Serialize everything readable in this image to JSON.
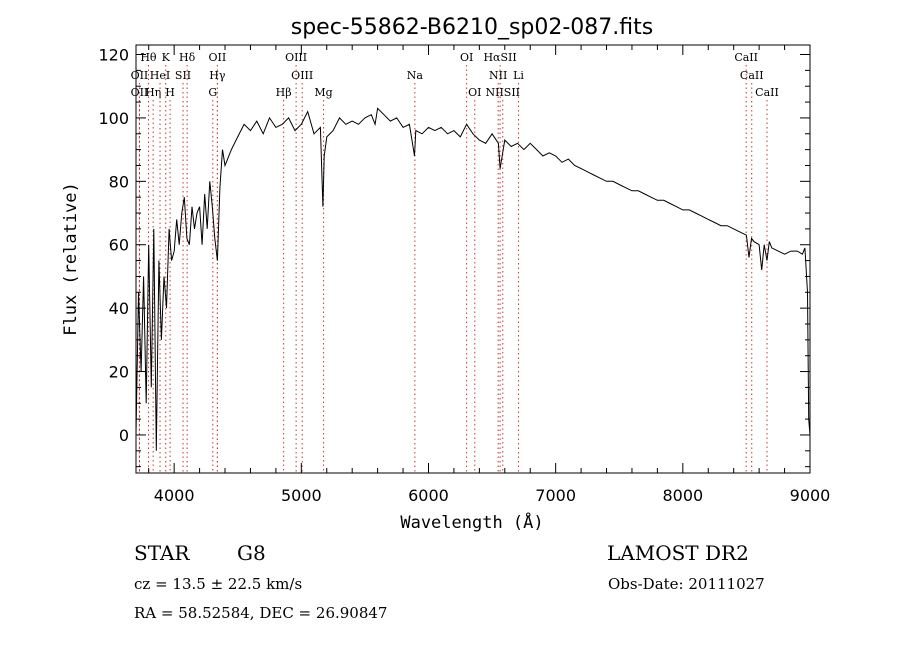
{
  "chart_data": {
    "type": "line",
    "title": "spec-55862-B6210_sp02-087.fits",
    "xlabel": "Wavelength (Å)",
    "ylabel": "Flux (relative)",
    "xlim": [
      3700,
      9000
    ],
    "ylim": [
      -12,
      123
    ],
    "x_ticks": [
      4000,
      5000,
      6000,
      7000,
      8000,
      9000
    ],
    "y_ticks": [
      0,
      20,
      40,
      60,
      80,
      100,
      120
    ],
    "grid": false,
    "series": [
      {
        "x": [
          3700,
          3720,
          3740,
          3760,
          3780,
          3800,
          3820,
          3840,
          3860,
          3880,
          3900,
          3920,
          3940,
          3960,
          3980,
          4000,
          4020,
          4040,
          4060,
          4080,
          4100,
          4120,
          4140,
          4160,
          4180,
          4200,
          4220,
          4240,
          4260,
          4280,
          4300,
          4320,
          4340,
          4360,
          4380,
          4400,
          4450,
          4500,
          4550,
          4600,
          4650,
          4700,
          4750,
          4800,
          4850,
          4900,
          4950,
          5000,
          5050,
          5100,
          5150,
          5170,
          5180,
          5200,
          5250,
          5300,
          5350,
          5400,
          5450,
          5500,
          5550,
          5580,
          5600,
          5650,
          5700,
          5750,
          5800,
          5850,
          5890,
          5900,
          5950,
          6000,
          6050,
          6100,
          6150,
          6200,
          6250,
          6300,
          6350,
          6400,
          6450,
          6500,
          6550,
          6563,
          6600,
          6650,
          6700,
          6750,
          6800,
          6850,
          6900,
          6950,
          7000,
          7050,
          7100,
          7150,
          7200,
          7250,
          7300,
          7350,
          7400,
          7450,
          7500,
          7550,
          7600,
          7650,
          7700,
          7750,
          7800,
          7850,
          7900,
          7950,
          8000,
          8050,
          8100,
          8150,
          8200,
          8250,
          8300,
          8350,
          8400,
          8450,
          8500,
          8520,
          8540,
          8560,
          8600,
          8620,
          8640,
          8662,
          8680,
          8700,
          8750,
          8800,
          8850,
          8900,
          8940,
          8960,
          8980,
          8990,
          9000
        ],
        "y": [
          0,
          45,
          20,
          50,
          10,
          60,
          15,
          65,
          -5,
          55,
          30,
          50,
          40,
          65,
          55,
          58,
          68,
          60,
          70,
          75,
          62,
          60,
          72,
          65,
          70,
          72,
          60,
          76,
          65,
          80,
          72,
          62,
          55,
          78,
          90,
          85,
          90,
          94,
          98,
          96,
          99,
          95,
          100,
          97,
          98,
          100,
          96,
          98,
          102,
          95,
          97,
          72,
          88,
          94,
          96,
          100,
          98,
          99,
          98,
          100,
          101,
          98,
          103,
          101,
          99,
          100,
          97,
          98,
          88,
          96,
          95,
          97,
          96,
          97,
          95,
          96,
          94,
          98,
          95,
          93,
          92,
          95,
          92,
          84,
          93,
          91,
          92,
          90,
          92,
          90,
          88,
          89,
          88,
          86,
          87,
          85,
          84,
          83,
          82,
          81,
          80,
          80,
          79,
          78,
          77,
          77,
          76,
          75,
          74,
          74,
          73,
          72,
          71,
          71,
          70,
          69,
          68,
          67,
          66,
          66,
          65,
          64,
          63,
          56,
          62,
          61,
          60,
          52,
          60,
          55,
          61,
          59,
          58,
          57,
          58,
          58,
          57,
          59,
          45,
          5,
          0
        ],
        "color": "#000000"
      }
    ],
    "lines": [
      {
        "name": "Hθ",
        "wl": 3798,
        "row": 0
      },
      {
        "name": "K",
        "wl": 3934,
        "row": 0
      },
      {
        "name": "Hδ",
        "wl": 4102,
        "row": 0
      },
      {
        "name": "OII",
        "wl": 4340,
        "row": 0
      },
      {
        "name": "OIII",
        "wl": 4959,
        "row": 0
      },
      {
        "name": "OI",
        "wl": 6300,
        "row": 0
      },
      {
        "name": "HαSII",
        "wl": 6563,
        "row": 0
      },
      {
        "name": "CaII",
        "wl": 8498,
        "row": 0
      },
      {
        "name": "OII",
        "wl": 3727,
        "row": 1
      },
      {
        "name": "HeI",
        "wl": 3889,
        "row": 1
      },
      {
        "name": "SII",
        "wl": 4070,
        "row": 1
      },
      {
        "name": "Hγ",
        "wl": 4340,
        "row": 1
      },
      {
        "name": "OIII",
        "wl": 5007,
        "row": 1
      },
      {
        "name": "Na",
        "wl": 5893,
        "row": 1
      },
      {
        "name": "NII",
        "wl": 6548,
        "row": 1
      },
      {
        "name": "Li",
        "wl": 6708,
        "row": 1
      },
      {
        "name": "CaII",
        "wl": 8542,
        "row": 1
      },
      {
        "name": "OII",
        "wl": 3727,
        "row": 2
      },
      {
        "name": "Hη",
        "wl": 3835,
        "row": 2
      },
      {
        "name": "H",
        "wl": 3968,
        "row": 2
      },
      {
        "name": "G",
        "wl": 4304,
        "row": 2
      },
      {
        "name": "Hβ",
        "wl": 4861,
        "row": 2
      },
      {
        "name": "Mg",
        "wl": 5175,
        "row": 2
      },
      {
        "name": "OI",
        "wl": 6364,
        "row": 2
      },
      {
        "name": "NIISII",
        "wl": 6584,
        "row": 2
      },
      {
        "name": "CaII",
        "wl": 8662,
        "row": 2
      }
    ]
  },
  "info": {
    "class_label": "STAR",
    "subclass": "G8",
    "survey": "LAMOST DR2",
    "cz": "cz = 13.5 ± 22.5 km/s",
    "obs_date": "Obs-Date: 20111027",
    "coords": "RA =  58.52584, DEC =  26.90847"
  }
}
